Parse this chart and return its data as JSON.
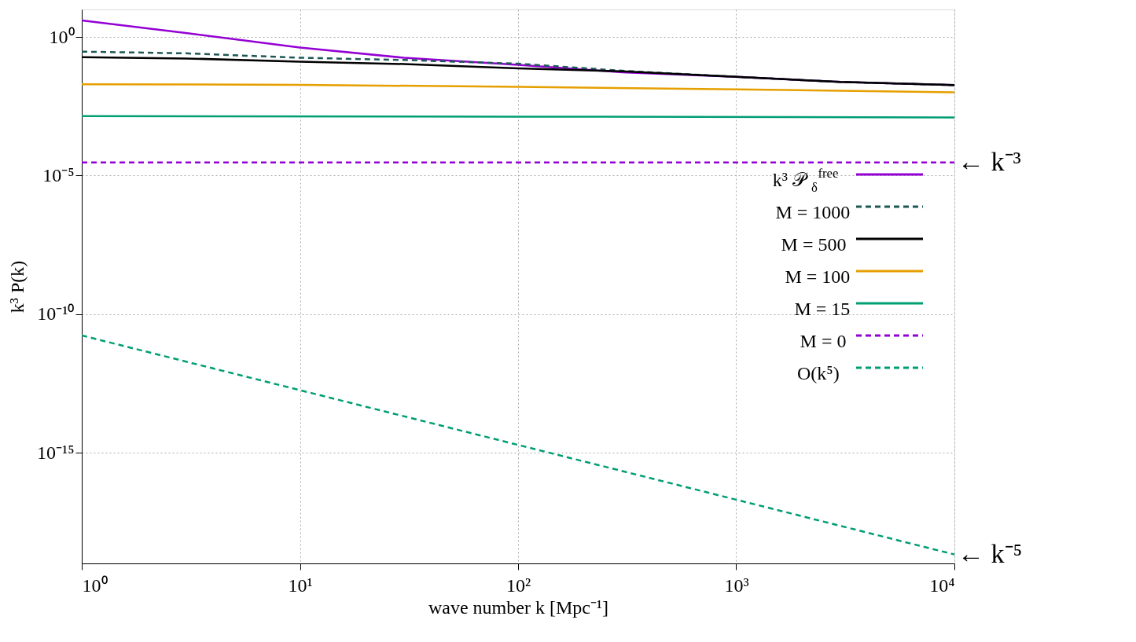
{
  "chart_data": {
    "type": "line",
    "xlabel": "wave number k [Mpc⁻¹]",
    "ylabel": "k³ P(k)",
    "log": "xy",
    "grid": true,
    "legend": "right",
    "marker": "none",
    "xlim": [
      1,
      10000
    ],
    "ylim": [
      1e-19,
      10
    ],
    "xticks": [
      {
        "value": 1,
        "label": "10⁰"
      },
      {
        "value": 10,
        "label": "10¹"
      },
      {
        "value": 100,
        "label": "10²"
      },
      {
        "value": 1000,
        "label": "10³"
      },
      {
        "value": 10000,
        "label": "10⁴"
      }
    ],
    "yticks": [
      {
        "value": 1e-15,
        "label": "10⁻¹⁵"
      },
      {
        "value": 1e-10,
        "label": "10⁻¹⁰"
      },
      {
        "value": 1e-05,
        "label": "10⁻⁵"
      },
      {
        "value": 1,
        "label": "10⁰"
      }
    ],
    "x": [
      1,
      3,
      10,
      30,
      100,
      300,
      1000,
      3000,
      10000
    ],
    "series": [
      {
        "name": "k³ 𝒫$_{δ}$$^{free}$",
        "color": "#9400d3",
        "line_style": "solid",
        "values": [
          4,
          1.4,
          0.42,
          0.18,
          0.1,
          0.054,
          0.037,
          0.024,
          0.0185
        ]
      },
      {
        "name": "M = 1000",
        "color": "#1d5856",
        "line_style": "dashed",
        "values": [
          0.3,
          0.26,
          0.18,
          0.15,
          0.11,
          0.061,
          0.037,
          0.024,
          0.0185
        ]
      },
      {
        "name": "M = 500",
        "color": "#000000",
        "line_style": "solid",
        "values": [
          0.19,
          0.17,
          0.13,
          0.107,
          0.075,
          0.058,
          0.037,
          0.024,
          0.0185
        ]
      },
      {
        "name": "M = 100",
        "color": "#e69f00",
        "line_style": "solid",
        "x": [
          1,
          10,
          100,
          1000,
          10000
        ],
        "values": [
          0.02,
          0.019,
          0.016,
          0.013,
          0.0102
        ]
      },
      {
        "name": "M = 15",
        "color": "#009e73",
        "line_style": "solid",
        "x": [
          1,
          100,
          10000
        ],
        "values": [
          0.0014,
          0.00135,
          0.00126
        ]
      },
      {
        "name": "M = 0",
        "color": "#9400d3",
        "line_style": "dashed",
        "x": [
          1,
          10000
        ],
        "values": [
          3e-05,
          3e-05
        ]
      },
      {
        "name": "O(k⁵)",
        "color": "#009e73",
        "line_style": "dashed",
        "x": [
          1,
          10,
          100,
          1000,
          10000
        ],
        "values": [
          1.7e-11,
          1.8e-13,
          1.9e-15,
          2e-17,
          2.1e-19
        ]
      }
    ],
    "annotations": [
      {
        "text": "← k⁻³",
        "x": 10000,
        "y": 3e-05
      },
      {
        "text": "← k⁻⁵",
        "x": 10000,
        "y": 2.1e-19
      }
    ]
  }
}
